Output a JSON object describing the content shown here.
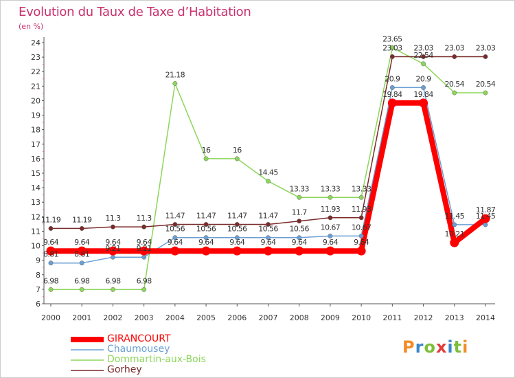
{
  "title": "Evolution du Taux de Taxe d’Habitation",
  "subtitle": "(en %)",
  "logo": {
    "text": "Proxiti",
    "colors": [
      "#f28c28",
      "#3a86c8",
      "#7cbf3a",
      "#e33b3b",
      "#3a86c8",
      "#7cbf3a",
      "#f28c28"
    ]
  },
  "chart_data": {
    "type": "line",
    "x": [
      "2000",
      "2001",
      "2002",
      "2003",
      "2004",
      "2005",
      "2006",
      "2007",
      "2008",
      "2009",
      "2010",
      "2011",
      "2012",
      "2013",
      "2014"
    ],
    "ylim": [
      6,
      24
    ],
    "yticks": [
      "6",
      "7",
      "8",
      "9",
      "10",
      "11",
      "12",
      "13",
      "14",
      "15",
      "16",
      "17",
      "18",
      "19",
      "20",
      "21",
      "22",
      "23",
      "24"
    ],
    "grid": false,
    "legend": "bottom-left",
    "series": [
      {
        "name": "GIRANCOURT",
        "color": "#ff0000",
        "width": 8,
        "values": [
          9.64,
          9.64,
          9.64,
          9.64,
          9.64,
          9.64,
          9.64,
          9.64,
          9.64,
          9.64,
          9.64,
          19.84,
          19.84,
          10.21,
          11.87
        ],
        "labels": [
          "9.64",
          "9.64",
          "9.64",
          "9.64",
          "9.64",
          "9.64",
          "9.64",
          "9.64",
          "9.64",
          "9.64",
          "9.64",
          "19.84",
          "19.84",
          "10.21",
          "11.87"
        ]
      },
      {
        "name": "Chaumousey",
        "color": "#6a9fd4",
        "width": 1.5,
        "values": [
          8.81,
          8.81,
          9.21,
          9.21,
          10.56,
          10.56,
          10.56,
          10.56,
          10.56,
          10.67,
          10.67,
          20.9,
          20.9,
          11.45,
          11.45
        ],
        "labels": [
          "8.81",
          "8.81",
          "9.21",
          "9.21",
          "10.56",
          "10.56",
          "10.56",
          "10.56",
          "10.56",
          "10.67",
          "10.67",
          "20.9",
          "20.9",
          "11.45",
          "11.45"
        ]
      },
      {
        "name": "Dommartin-aux-Bois",
        "color": "#8cd65a",
        "width": 1.5,
        "values": [
          6.98,
          6.98,
          6.98,
          6.98,
          21.18,
          16,
          16,
          14.45,
          13.33,
          13.33,
          13.33,
          23.65,
          22.54,
          20.54,
          20.54
        ],
        "labels": [
          "6.98",
          "6.98",
          "6.98",
          "6.98",
          "21.18",
          "16",
          "16",
          "14.45",
          "13.33",
          "13.33",
          "13.33",
          "23.65",
          "22.54",
          "20.54",
          "20.54"
        ]
      },
      {
        "name": "Gorhey",
        "color": "#7a2a2a",
        "width": 1.5,
        "values": [
          11.19,
          11.19,
          11.3,
          11.3,
          11.47,
          11.47,
          11.47,
          11.47,
          11.7,
          11.93,
          11.93,
          23.03,
          23.03,
          23.03,
          23.03
        ],
        "labels": [
          "11.19",
          "11.19",
          "11.3",
          "11.3",
          "11.47",
          "11.47",
          "11.47",
          "11.47",
          "11.7",
          "11.93",
          "11.93",
          "23.03",
          "23.03",
          "23.03",
          "23.03"
        ]
      }
    ]
  }
}
